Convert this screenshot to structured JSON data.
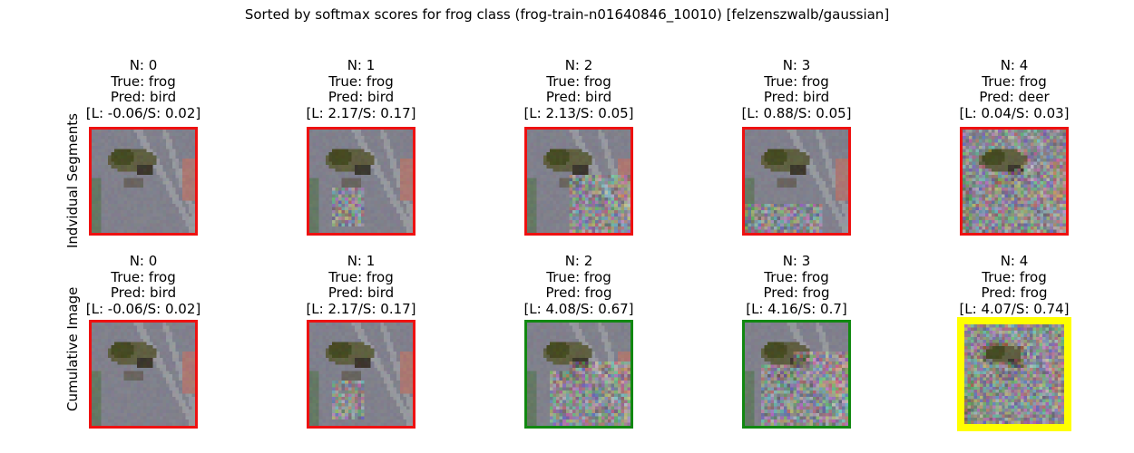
{
  "chart_data": {
    "type": "image-grid",
    "title": "Sorted by softmax scores for frog class (frog-train-n01640846_10010) [felzenszwalb/gaussian]",
    "rows": [
      {
        "label": "Indvidual Segments",
        "panels": [
          {
            "n": "N: 0",
            "true_label": "True: frog",
            "pred_label": "Pred: bird",
            "scores": "[L: -0.06/S: 0.02]",
            "border": "#ee1111",
            "noise_region": "none"
          },
          {
            "n": "N: 1",
            "true_label": "True: frog",
            "pred_label": "Pred: bird",
            "scores": "[L: 2.17/S: 0.17]",
            "border": "#ee1111",
            "noise_region": "lower-left"
          },
          {
            "n": "N: 2",
            "true_label": "True: frog",
            "pred_label": "Pred: bird",
            "scores": "[L: 2.13/S: 0.05]",
            "border": "#ee1111",
            "noise_region": "lower-right"
          },
          {
            "n": "N: 3",
            "true_label": "True: frog",
            "pred_label": "Pred: bird",
            "scores": "[L: 0.88/S: 0.05]",
            "border": "#ee1111",
            "noise_region": "bottom"
          },
          {
            "n": "N: 4",
            "true_label": "True: frog",
            "pred_label": "Pred: deer",
            "scores": "[L: 0.04/S: 0.03]",
            "border": "#ee1111",
            "noise_region": "background"
          }
        ]
      },
      {
        "label": "Cumulative Image",
        "panels": [
          {
            "n": "N: 0",
            "true_label": "True: frog",
            "pred_label": "Pred: bird",
            "scores": "[L: -0.06/S: 0.02]",
            "border": "#ee1111",
            "noise_region": "none"
          },
          {
            "n": "N: 1",
            "true_label": "True: frog",
            "pred_label": "Pred: bird",
            "scores": "[L: 2.17/S: 0.17]",
            "border": "#ee1111",
            "noise_region": "lower-left"
          },
          {
            "n": "N: 2",
            "true_label": "True: frog",
            "pred_label": "Pred: frog",
            "scores": "[L: 4.08/S: 0.67]",
            "border": "#118811",
            "noise_region": "lower-half"
          },
          {
            "n": "N: 3",
            "true_label": "True: frog",
            "pred_label": "Pred: frog",
            "scores": "[L: 4.16/S: 0.7]",
            "border": "#118811",
            "noise_region": "lower-more"
          },
          {
            "n": "N: 4",
            "true_label": "True: frog",
            "pred_label": "Pred: frog",
            "scores": "[L: 4.07/S: 0.74]",
            "border": "#ffff00",
            "noise_region": "all"
          }
        ]
      }
    ]
  }
}
